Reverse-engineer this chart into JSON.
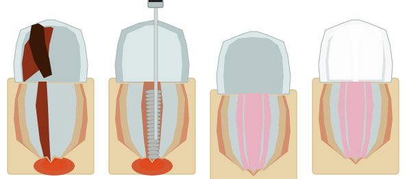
{
  "bg_color": "#ffffff",
  "fig_width": 5.94,
  "fig_height": 2.61,
  "dpi": 100,
  "colors": {
    "bone": "#e8d4a8",
    "bone_edge": "#d4b87a",
    "periodontal": "#d4906a",
    "periodontal_dark": "#c07858",
    "enamel": "#c8d4d4",
    "enamel_edge": "#a8b8b8",
    "enamel_light": "#dce8e8",
    "dentin": "#b8c8c8",
    "pulp_empty": "#b8c8c8",
    "cementum": "#c8a878",
    "cementum_inner": "#d4b890",
    "cavity": "#3a1808",
    "infected_pulp": "#8b3018",
    "infection_red": "#cc2200",
    "infection_orange": "#e84010",
    "fill_pink": "#e8b0c0",
    "fill_pink_dark": "#d898b0",
    "white_crown": "#f8f8f8",
    "white_crown_bright": "#ffffff",
    "drill_silver": "#b8c0c0",
    "drill_dark": "#808888",
    "drill_black": "#202020"
  }
}
